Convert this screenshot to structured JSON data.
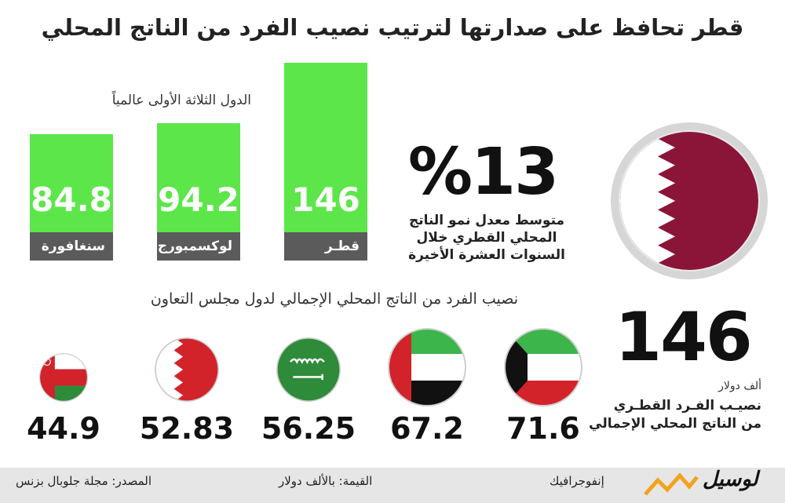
{
  "title": "قطر تحافظ على صدارتها لترتيب نصيب الفرد من الناتج المحلي",
  "chart_data": [
    {
      "type": "bar",
      "title": "الدول الثلاثة الأولى عالمياً",
      "categories": [
        "قطـر",
        "لوكسمبورج",
        "سنغافورة"
      ],
      "values": [
        146,
        94.2,
        84.8
      ],
      "value_labels": [
        "146",
        "94.2",
        "84.8"
      ],
      "colors": {
        "bar": "#5ce64a",
        "label_bg": "#5b5b5b"
      }
    },
    {
      "type": "table",
      "title": "نصيب الفرد من الناتج المحلي الإجمالي لدول مجلس التعاون",
      "categories": [
        "Kuwait",
        "UAE",
        "Saudi Arabia",
        "Bahrain",
        "Oman"
      ],
      "values": [
        71.6,
        67.2,
        56.25,
        52.83,
        44.9
      ],
      "value_labels": [
        "71.6",
        "67.2",
        "56.25",
        "52.83",
        "44.9"
      ],
      "icons": [
        "kuwait-flag-icon",
        "uae-flag-icon",
        "saudi-flag-icon",
        "bahrain-flag-icon",
        "oman-flag-icon"
      ]
    }
  ],
  "highlight": {
    "percent": "%13",
    "percent_desc": [
      "متوسط معدل نمو الناتج",
      "المحلي القطري خلال",
      "السنوات العشرة الأخيرة"
    ],
    "value": "146",
    "unit": "ألف دولار",
    "value_desc": [
      "نصيـب الفـرد القطـري",
      "من الناتج المحلي الإجمالي"
    ],
    "flag_icon": "qatar-flag-icon",
    "colors": {
      "maroon": "#8a1538"
    }
  },
  "footer": {
    "brand": "لوسيل",
    "category": "إنفوجرافيك",
    "unit_note": "القيمة: بالألف دولار",
    "source": "المصدر: مجلة جلوبال بزنس"
  }
}
